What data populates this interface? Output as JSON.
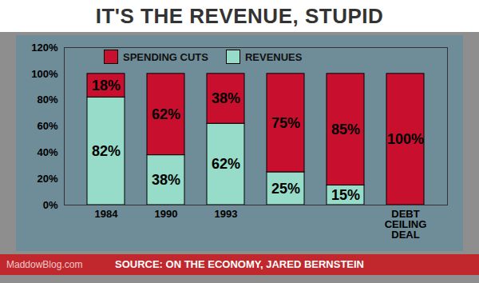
{
  "chart_data": {
    "type": "bar",
    "title": "IT'S THE REVENUE, STUPID",
    "categories": [
      "1984",
      "1990",
      "1993",
      null,
      null,
      "DEBT CEILING DEAL"
    ],
    "series": [
      {
        "name": "REVENUES",
        "color": "#96dcc8",
        "values": [
          82,
          38,
          62,
          25,
          15,
          null
        ],
        "value_labels": [
          "82%",
          "38%",
          "62%",
          "25%",
          "15%",
          null
        ]
      },
      {
        "name": "SPENDING CUTS",
        "color": "#c8102e",
        "values": [
          18,
          62,
          38,
          75,
          85,
          100
        ],
        "value_labels": [
          "18%",
          "62%",
          "38%",
          "75%",
          "85%",
          "100%"
        ]
      }
    ],
    "stacked": true,
    "data_labels": true,
    "legend": "top",
    "ylim": [
      0,
      120
    ],
    "yticks": [
      {
        "value": 0,
        "label": "0%"
      },
      {
        "value": 20,
        "label": "20%"
      },
      {
        "value": 40,
        "label": "40%"
      },
      {
        "value": 60,
        "label": "60%"
      },
      {
        "value": 80,
        "label": "80%"
      },
      {
        "value": 100,
        "label": "100%"
      },
      {
        "value": 120,
        "label": "120%"
      }
    ],
    "source": "SOURCE: ON THE ECONOMY, JARED BERNSTEIN",
    "annotations": [
      "MaddowBlog.com"
    ]
  }
}
